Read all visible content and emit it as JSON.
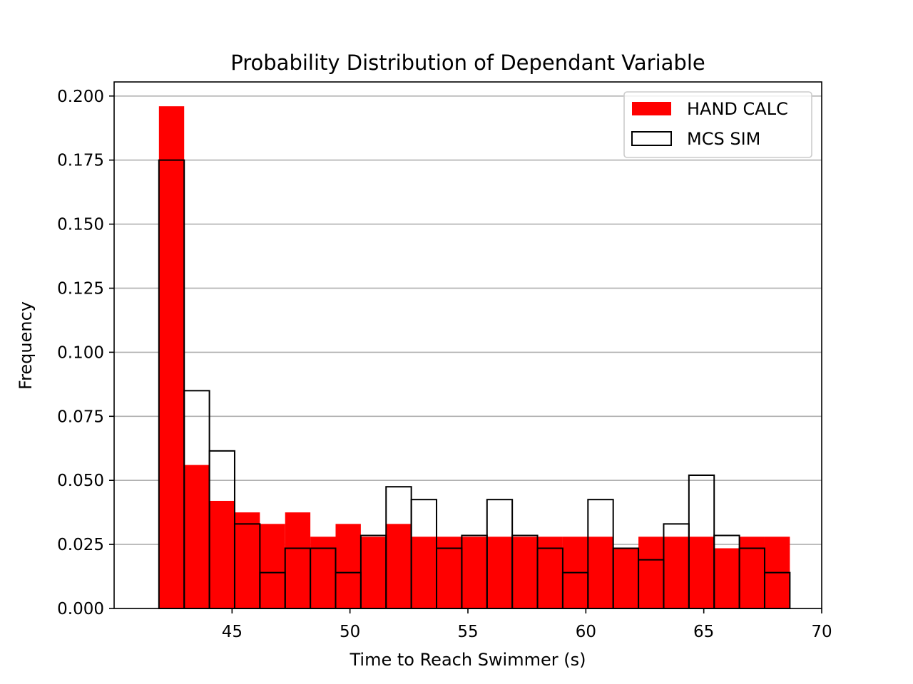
{
  "chart_data": {
    "type": "histogram",
    "title": "Probability Distribution of Dependant Variable",
    "xlabel": "Time to Reach Swimmer (s)",
    "ylabel": "Frequency",
    "xlim": [
      40.0,
      70.0
    ],
    "ylim": [
      0.0,
      0.2055
    ],
    "xticks": [
      45,
      50,
      55,
      60,
      65,
      70
    ],
    "yticks": [
      0.0,
      0.025,
      0.05,
      0.075,
      0.1,
      0.125,
      0.15,
      0.175,
      0.2
    ],
    "ytick_labels": [
      "0.000",
      "0.025",
      "0.050",
      "0.075",
      "0.100",
      "0.125",
      "0.150",
      "0.175",
      "0.200"
    ],
    "grid": "horizontal",
    "legend_position": "top-right",
    "series": [
      {
        "name": "HAND CALC",
        "style": "filled",
        "color": "#ff0000",
        "bins": [
          {
            "x0": 41.9,
            "x1": 42.97,
            "value": 0.196
          },
          {
            "x0": 42.97,
            "x1": 44.04,
            "value": 0.056
          },
          {
            "x0": 44.04,
            "x1": 45.11,
            "value": 0.042
          },
          {
            "x0": 45.11,
            "x1": 46.18,
            "value": 0.0375
          },
          {
            "x0": 46.18,
            "x1": 47.25,
            "value": 0.033
          },
          {
            "x0": 47.25,
            "x1": 48.32,
            "value": 0.0375
          },
          {
            "x0": 48.32,
            "x1": 49.39,
            "value": 0.028
          },
          {
            "x0": 49.39,
            "x1": 50.46,
            "value": 0.033
          },
          {
            "x0": 50.46,
            "x1": 51.53,
            "value": 0.028
          },
          {
            "x0": 51.53,
            "x1": 52.6,
            "value": 0.033
          },
          {
            "x0": 52.6,
            "x1": 53.67,
            "value": 0.028
          },
          {
            "x0": 53.67,
            "x1": 54.74,
            "value": 0.028
          },
          {
            "x0": 54.74,
            "x1": 55.81,
            "value": 0.028
          },
          {
            "x0": 55.81,
            "x1": 56.88,
            "value": 0.028
          },
          {
            "x0": 56.88,
            "x1": 57.95,
            "value": 0.028
          },
          {
            "x0": 57.95,
            "x1": 59.02,
            "value": 0.028
          },
          {
            "x0": 59.02,
            "x1": 60.09,
            "value": 0.028
          },
          {
            "x0": 60.09,
            "x1": 61.16,
            "value": 0.028
          },
          {
            "x0": 61.16,
            "x1": 62.23,
            "value": 0.0235
          },
          {
            "x0": 62.23,
            "x1": 63.3,
            "value": 0.028
          },
          {
            "x0": 63.3,
            "x1": 64.37,
            "value": 0.028
          },
          {
            "x0": 64.37,
            "x1": 65.44,
            "value": 0.028
          },
          {
            "x0": 65.44,
            "x1": 66.51,
            "value": 0.0235
          },
          {
            "x0": 66.51,
            "x1": 67.58,
            "value": 0.028
          },
          {
            "x0": 67.58,
            "x1": 68.65,
            "value": 0.028
          }
        ]
      },
      {
        "name": "MCS SIM",
        "style": "outline",
        "color": "#000000",
        "bins": [
          {
            "x0": 41.9,
            "x1": 42.97,
            "value": 0.175
          },
          {
            "x0": 42.97,
            "x1": 44.04,
            "value": 0.085
          },
          {
            "x0": 44.04,
            "x1": 45.11,
            "value": 0.0615
          },
          {
            "x0": 45.11,
            "x1": 46.18,
            "value": 0.033
          },
          {
            "x0": 46.18,
            "x1": 47.25,
            "value": 0.014
          },
          {
            "x0": 47.25,
            "x1": 48.32,
            "value": 0.0235
          },
          {
            "x0": 48.32,
            "x1": 49.39,
            "value": 0.0235
          },
          {
            "x0": 49.39,
            "x1": 50.46,
            "value": 0.014
          },
          {
            "x0": 50.46,
            "x1": 51.53,
            "value": 0.0285
          },
          {
            "x0": 51.53,
            "x1": 52.6,
            "value": 0.0475
          },
          {
            "x0": 52.6,
            "x1": 53.67,
            "value": 0.0425
          },
          {
            "x0": 53.67,
            "x1": 54.74,
            "value": 0.0235
          },
          {
            "x0": 54.74,
            "x1": 55.81,
            "value": 0.0285
          },
          {
            "x0": 55.81,
            "x1": 56.88,
            "value": 0.0425
          },
          {
            "x0": 56.88,
            "x1": 57.95,
            "value": 0.0285
          },
          {
            "x0": 57.95,
            "x1": 59.02,
            "value": 0.0235
          },
          {
            "x0": 59.02,
            "x1": 60.09,
            "value": 0.014
          },
          {
            "x0": 60.09,
            "x1": 61.16,
            "value": 0.0425
          },
          {
            "x0": 61.16,
            "x1": 62.23,
            "value": 0.0235
          },
          {
            "x0": 62.23,
            "x1": 63.3,
            "value": 0.019
          },
          {
            "x0": 63.3,
            "x1": 64.37,
            "value": 0.033
          },
          {
            "x0": 64.37,
            "x1": 65.44,
            "value": 0.052
          },
          {
            "x0": 65.44,
            "x1": 66.51,
            "value": 0.0285
          },
          {
            "x0": 66.51,
            "x1": 67.58,
            "value": 0.0235
          },
          {
            "x0": 67.58,
            "x1": 68.65,
            "value": 0.014
          }
        ]
      }
    ]
  }
}
